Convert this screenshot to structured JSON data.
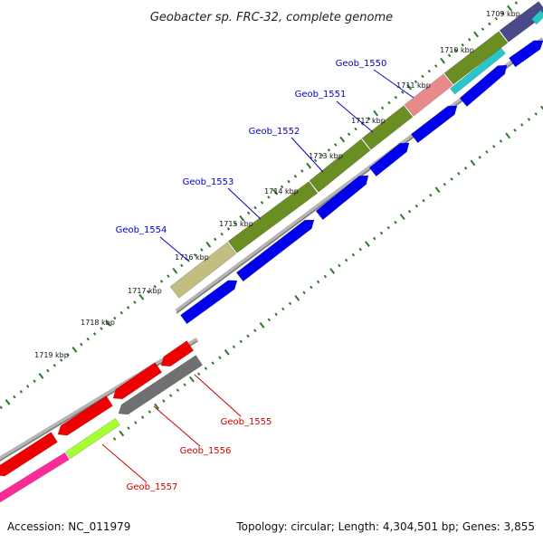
{
  "title": "Geobacter sp. FRC-32, complete genome",
  "footer": {
    "accession": "Accession: NC_011979",
    "summary": "Topology: circular; Length: 4,304,501 bp; Genes: 3,855"
  },
  "colors": {
    "backbone": "#8c8c8c",
    "tick": "#2a7a2a",
    "forward_label": "#0000cc",
    "reverse_label": "#cc0000"
  },
  "ticks": [
    {
      "kbp": 1709,
      "label": "1709 kbp"
    },
    {
      "kbp": 1710,
      "label": "1710 kbp"
    },
    {
      "kbp": 1711,
      "label": "1711 kbp"
    },
    {
      "kbp": 1712,
      "label": "1712 kbp"
    },
    {
      "kbp": 1713,
      "label": "1713 kbp"
    },
    {
      "kbp": 1714,
      "label": "1714 kbp"
    },
    {
      "kbp": 1715,
      "label": "1715 kbp"
    },
    {
      "kbp": 1716,
      "label": "1716 kbp"
    },
    {
      "kbp": 1717,
      "label": "1717 kbp"
    },
    {
      "kbp": 1718,
      "label": "1718 kbp"
    },
    {
      "kbp": 1719,
      "label": "1719 kbp"
    }
  ],
  "labelled_genes": [
    {
      "name": "Geob_1550",
      "strand": "forward"
    },
    {
      "name": "Geob_1551",
      "strand": "forward"
    },
    {
      "name": "Geob_1552",
      "strand": "forward"
    },
    {
      "name": "Geob_1553",
      "strand": "forward"
    },
    {
      "name": "Geob_1554",
      "strand": "forward"
    },
    {
      "name": "Geob_1555",
      "strand": "reverse"
    },
    {
      "name": "Geob_1556",
      "strand": "reverse"
    },
    {
      "name": "Geob_1557",
      "strand": "reverse"
    }
  ]
}
